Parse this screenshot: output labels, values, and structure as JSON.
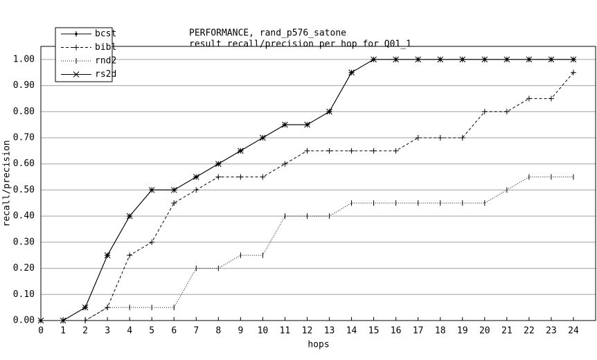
{
  "chart_data": {
    "type": "line",
    "title": "PERFORMANCE, rand_p576_satone",
    "subtitle": "result recall/precision per hop for Q01_1",
    "x_label": "hops",
    "y_label": "recall/precision",
    "x": [
      0,
      1,
      2,
      3,
      4,
      5,
      6,
      7,
      8,
      9,
      10,
      11,
      12,
      13,
      14,
      15,
      16,
      17,
      18,
      19,
      20,
      21,
      22,
      23,
      24
    ],
    "series": [
      {
        "name": "bcst",
        "color": "#000000",
        "marker": "dot",
        "dash": "none",
        "values": [
          0,
          0,
          0.05,
          0.25,
          0.4,
          0.5,
          0.5,
          0.55,
          0.6,
          0.65,
          0.7,
          0.75,
          0.75,
          0.8,
          0.95,
          1.0,
          1.0,
          1.0,
          1.0,
          1.0,
          1.0,
          1.0,
          1.0,
          1.0,
          1.0
        ]
      },
      {
        "name": "bibl",
        "color": "#000000",
        "marker": "plus",
        "dash": "4,3",
        "values": [
          0,
          0,
          0,
          0.05,
          0.25,
          0.3,
          0.45,
          0.5,
          0.55,
          0.55,
          0.55,
          0.6,
          0.65,
          0.65,
          0.65,
          0.65,
          0.65,
          0.7,
          0.7,
          0.7,
          0.8,
          0.8,
          0.85,
          0.85,
          0.95
        ]
      },
      {
        "name": "rnd2",
        "color": "#000000",
        "marker": "bar",
        "dash": "1,2",
        "values": [
          0,
          0,
          0,
          0.05,
          0.05,
          0.05,
          0.05,
          0.2,
          0.2,
          0.25,
          0.25,
          0.4,
          0.4,
          0.4,
          0.45,
          0.45,
          0.45,
          0.45,
          0.45,
          0.45,
          0.45,
          0.5,
          0.55,
          0.55,
          0.55
        ]
      },
      {
        "name": "rs2d",
        "color": "#000000",
        "marker": "star",
        "dash": "none",
        "values": [
          0,
          0,
          0.05,
          0.25,
          0.4,
          0.5,
          0.5,
          0.55,
          0.6,
          0.65,
          0.7,
          0.75,
          0.75,
          0.8,
          0.95,
          1.0,
          1.0,
          1.0,
          1.0,
          1.0,
          1.0,
          1.0,
          1.0,
          1.0,
          1.0
        ]
      }
    ],
    "xlim": [
      0,
      25
    ],
    "ylim": [
      0,
      1.05
    ],
    "xticks": [
      0,
      1,
      2,
      3,
      4,
      5,
      6,
      7,
      8,
      9,
      10,
      11,
      12,
      13,
      14,
      15,
      16,
      17,
      18,
      19,
      20,
      21,
      22,
      23,
      24
    ],
    "yticks": [
      {
        "value": 0,
        "label": "0.00"
      },
      {
        "value": 0.1,
        "label": "0.10"
      },
      {
        "value": 0.2,
        "label": "0.20"
      },
      {
        "value": 0.3,
        "label": "0.30"
      },
      {
        "value": 0.4,
        "label": "0.40"
      },
      {
        "value": 0.5,
        "label": "0.50"
      },
      {
        "value": 0.6,
        "label": "0.60"
      },
      {
        "value": 0.7,
        "label": "0.70"
      },
      {
        "value": 0.8,
        "label": "0.80"
      },
      {
        "value": 0.9,
        "label": "0.90"
      },
      {
        "value": 1,
        "label": "1.00"
      }
    ],
    "grid": true,
    "legend": "top-left"
  }
}
